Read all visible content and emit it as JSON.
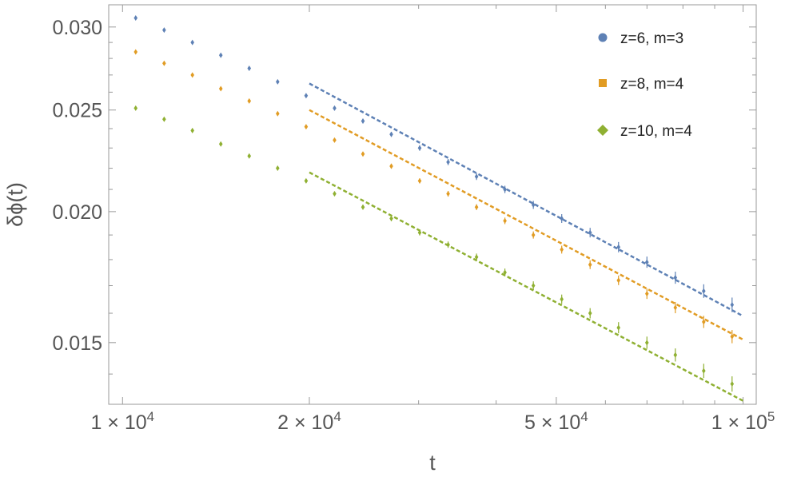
{
  "chart_data": {
    "type": "scatter",
    "xscale": "log",
    "yscale": "log",
    "xlabel": "t",
    "ylabel": "δϕ(t)",
    "xlim": [
      9500,
      105000
    ],
    "ylim": [
      0.0131,
      0.0315
    ],
    "x_ticks": [
      {
        "value": 10000,
        "mant": "1",
        "exp": "4"
      },
      {
        "value": 20000,
        "mant": "2",
        "exp": "4"
      },
      {
        "value": 50000,
        "mant": "5",
        "exp": "4"
      },
      {
        "value": 100000,
        "mant": "1",
        "exp": "5"
      }
    ],
    "x_times": "×",
    "x_base": "10",
    "y_ticks": [
      {
        "value": 0.015,
        "label": "0.015"
      },
      {
        "value": 0.02,
        "label": "0.020"
      },
      {
        "value": 0.025,
        "label": "0.025"
      },
      {
        "value": 0.03,
        "label": "0.030"
      }
    ],
    "grid": false,
    "legend_position": "top-right",
    "x": [
      10500,
      11670,
      12960,
      14400,
      16000,
      17780,
      19760,
      21960,
      24400,
      27110,
      30120,
      33470,
      37190,
      41320,
      45920,
      51020,
      56690,
      62990,
      69990,
      77770,
      86410,
      96000
    ],
    "series": [
      {
        "name": "z=6, m=3",
        "color": "#5E81B5",
        "marker": "circle",
        "values": [
          0.0306,
          0.0298,
          0.029,
          0.0282,
          0.0274,
          0.0266,
          0.0258,
          0.0251,
          0.0244,
          0.0237,
          0.023,
          0.0223,
          0.0216,
          0.021,
          0.0203,
          0.0197,
          0.0191,
          0.0185,
          0.0179,
          0.0173,
          0.0168,
          0.0163
        ],
        "errors": [
          0.0001,
          0.0001,
          0.0001,
          0.0001,
          0.0001,
          0.0001,
          0.0001,
          0.00012,
          0.00012,
          0.00013,
          0.00014,
          0.00015,
          0.00016,
          0.00017,
          0.00018,
          0.00019,
          0.0002,
          0.00021,
          0.00022,
          0.00023,
          0.00025,
          0.00026
        ],
        "fit": {
          "x": [
            20000,
            100000
          ],
          "y": [
            0.0265,
            0.0159
          ]
        }
      },
      {
        "name": "z=8, m=4",
        "color": "#E19C24",
        "marker": "square",
        "values": [
          0.0284,
          0.0277,
          0.027,
          0.0262,
          0.0255,
          0.0248,
          0.0241,
          0.0234,
          0.0227,
          0.0221,
          0.0214,
          0.0208,
          0.0202,
          0.0196,
          0.019,
          0.0184,
          0.0178,
          0.0172,
          0.0167,
          0.0162,
          0.0157,
          0.0152
        ],
        "errors": [
          0.0001,
          0.0001,
          0.0001,
          0.0001,
          0.0001,
          0.0001,
          0.0001,
          0.00011,
          0.00011,
          0.00012,
          0.00012,
          0.00013,
          0.00013,
          0.00014,
          0.00015,
          0.00016,
          0.00017,
          0.00018,
          0.00019,
          0.0002,
          0.00021,
          0.00022
        ],
        "fit": {
          "x": [
            20000,
            100000
          ],
          "y": [
            0.025,
            0.0151
          ]
        }
      },
      {
        "name": "z=10, m=4",
        "color": "#8FB032",
        "marker": "diamond",
        "values": [
          0.0251,
          0.0245,
          0.0239,
          0.0232,
          0.0226,
          0.022,
          0.0214,
          0.0208,
          0.0202,
          0.0197,
          0.0191,
          0.0186,
          0.0181,
          0.0175,
          0.017,
          0.0165,
          0.016,
          0.0155,
          0.015,
          0.0146,
          0.0141,
          0.0137
        ],
        "errors": [
          0.0001,
          0.0001,
          0.0001,
          0.0001,
          0.0001,
          0.0001,
          0.0001,
          0.00011,
          0.00011,
          0.00012,
          0.00012,
          0.00013,
          0.00014,
          0.00015,
          0.00016,
          0.00017,
          0.00018,
          0.00019,
          0.0002,
          0.00021,
          0.00022,
          0.00023
        ],
        "fit": {
          "x": [
            20000,
            100000
          ],
          "y": [
            0.0218,
            0.0132
          ]
        }
      }
    ]
  }
}
